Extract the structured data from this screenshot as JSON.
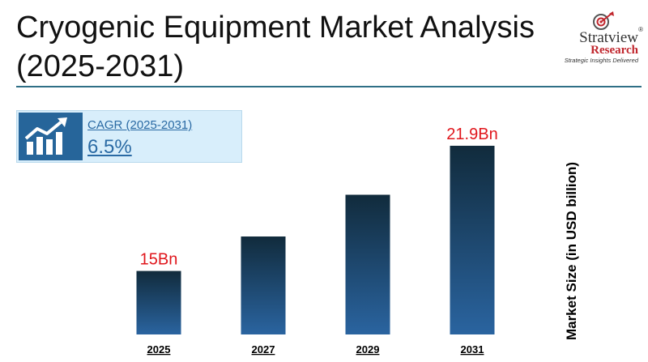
{
  "header": {
    "title_line1": "Cryogenic Equipment Market Analysis",
    "title_line2": "(2025-2031)"
  },
  "logo": {
    "name": "Stratview",
    "registered": "®",
    "sub": "Research",
    "tagline": "Strategic Insights Delivered"
  },
  "cagr": {
    "label": "CAGR (2025-2031)",
    "value": "6.5%",
    "icon": "trend-chart-icon"
  },
  "colors": {
    "bar_top": "#112b3c",
    "bar_bottom": "#2a64a0",
    "value_label": "#e0161c",
    "brand_red": "#c0262d",
    "accent_blue": "#2a6aa4"
  },
  "chart_data": {
    "type": "bar",
    "categories": [
      "2025",
      "2027",
      "2029",
      "2031"
    ],
    "values": [
      15,
      16.9,
      19.2,
      21.9
    ],
    "data_labels": [
      "15Bn",
      "",
      "",
      "21.9Bn"
    ],
    "xlabel": "",
    "ylabel": "Market Size (in USD billion)",
    "ylim": [
      11.5,
      21.9
    ],
    "grid": false,
    "legend": "none"
  }
}
